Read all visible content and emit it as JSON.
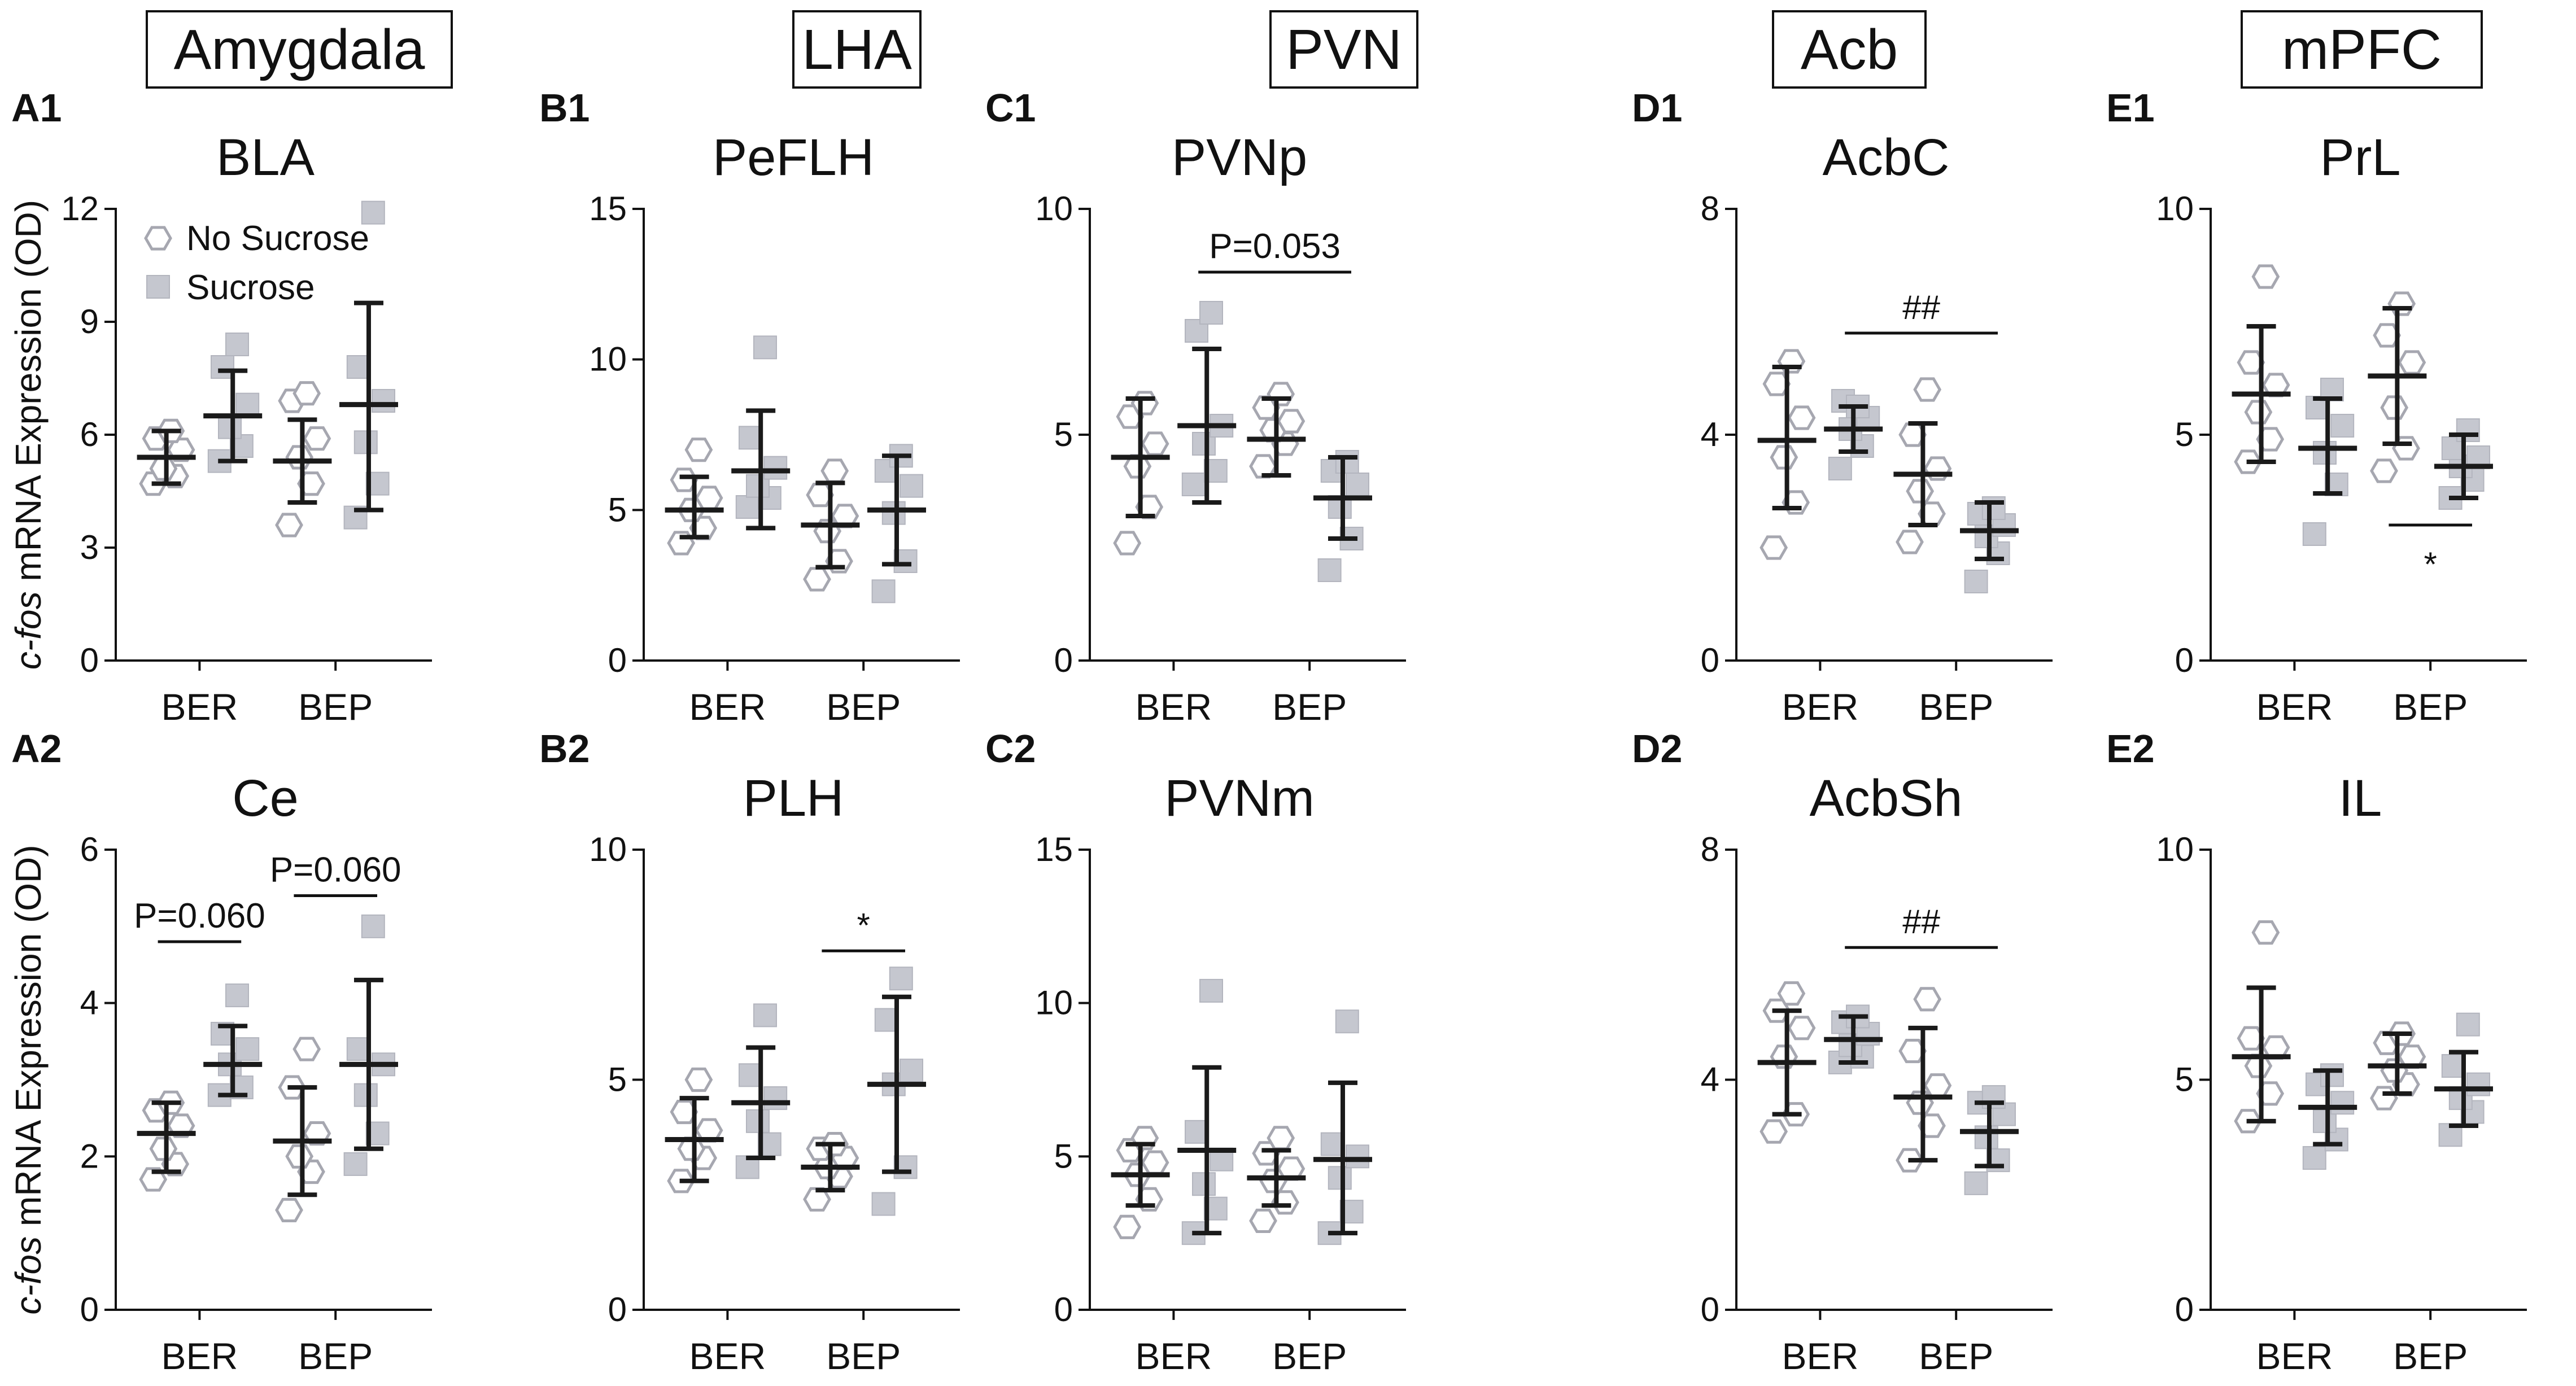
{
  "figure": {
    "ylabel_italic": "c-fos",
    "ylabel_rest": " mRNA Expression (OD)",
    "legend": {
      "no_sucrose": "No Sucrose",
      "sucrose": "Sucrose"
    },
    "region_boxes": [
      "Amygdala",
      "LHA",
      "PVN",
      "Acb",
      "mPFC"
    ]
  },
  "chart_data": [
    {
      "type": "scatter",
      "panel": "A1",
      "title": "BLA",
      "categories": [
        "BER",
        "BEP"
      ],
      "ylim": [
        0,
        12
      ],
      "yticks": [
        "0",
        "3",
        "6",
        "9",
        "12"
      ],
      "series": [
        {
          "name": "No Sucrose",
          "groups": [
            {
              "category": "BER",
              "points": [
                4.7,
                4.9,
                5.1,
                5.6,
                5.9,
                6.1
              ],
              "mean": 5.4,
              "sd_low": 4.7,
              "sd_high": 6.1
            },
            {
              "category": "BEP",
              "points": [
                3.6,
                4.7,
                5.4,
                5.9,
                6.9,
                7.1
              ],
              "mean": 5.3,
              "sd_low": 4.2,
              "sd_high": 6.4
            }
          ]
        },
        {
          "name": "Sucrose",
          "groups": [
            {
              "category": "BER",
              "points": [
                5.3,
                5.7,
                6.2,
                6.8,
                7.8,
                8.4
              ],
              "mean": 6.5,
              "sd_low": 5.3,
              "sd_high": 7.7
            },
            {
              "category": "BEP",
              "points": [
                3.8,
                4.7,
                5.8,
                6.9,
                7.8,
                11.9
              ],
              "mean": 6.8,
              "sd_low": 4.0,
              "sd_high": 9.5
            }
          ]
        }
      ],
      "annotations": []
    },
    {
      "type": "scatter",
      "panel": "B1",
      "title": "PeFLH",
      "categories": [
        "BER",
        "BEP"
      ],
      "ylim": [
        0,
        15
      ],
      "yticks": [
        "0",
        "5",
        "10",
        "15"
      ],
      "series": [
        {
          "name": "No Sucrose",
          "groups": [
            {
              "category": "BER",
              "points": [
                3.9,
                4.4,
                5.0,
                5.4,
                6.0,
                7.0
              ],
              "mean": 5.0,
              "sd_low": 4.1,
              "sd_high": 6.1
            },
            {
              "category": "BEP",
              "points": [
                2.7,
                3.3,
                4.3,
                4.8,
                5.5,
                6.3
              ],
              "mean": 4.5,
              "sd_low": 3.1,
              "sd_high": 5.9
            }
          ]
        },
        {
          "name": "Sucrose",
          "groups": [
            {
              "category": "BER",
              "points": [
                5.1,
                5.4,
                5.8,
                6.4,
                7.4,
                10.4
              ],
              "mean": 6.3,
              "sd_low": 4.4,
              "sd_high": 8.3
            },
            {
              "category": "BEP",
              "points": [
                2.3,
                3.3,
                4.9,
                5.8,
                6.3,
                6.8
              ],
              "mean": 5.0,
              "sd_low": 3.2,
              "sd_high": 6.8
            }
          ]
        }
      ],
      "annotations": []
    },
    {
      "type": "scatter",
      "panel": "C1",
      "title": "PVNp",
      "categories": [
        "BER",
        "BEP"
      ],
      "ylim": [
        0,
        10
      ],
      "yticks": [
        "0",
        "5",
        "10"
      ],
      "series": [
        {
          "name": "No Sucrose",
          "groups": [
            {
              "category": "BER",
              "points": [
                2.6,
                3.4,
                4.3,
                4.8,
                5.4,
                5.7
              ],
              "mean": 4.5,
              "sd_low": 3.2,
              "sd_high": 5.8
            },
            {
              "category": "BEP",
              "points": [
                4.3,
                4.8,
                5.1,
                5.3,
                5.6,
                5.9
              ],
              "mean": 4.9,
              "sd_low": 4.1,
              "sd_high": 5.8
            }
          ]
        },
        {
          "name": "Sucrose",
          "groups": [
            {
              "category": "BER",
              "points": [
                3.9,
                4.2,
                4.8,
                5.2,
                7.3,
                7.7
              ],
              "mean": 5.2,
              "sd_low": 3.5,
              "sd_high": 6.9
            },
            {
              "category": "BEP",
              "points": [
                2.0,
                2.7,
                3.4,
                3.9,
                4.2,
                4.4
              ],
              "mean": 3.6,
              "sd_low": 2.7,
              "sd_high": 4.5
            }
          ]
        }
      ],
      "annotations": [
        {
          "text": "P=0.053",
          "from": "BER-Sucrose",
          "to": "BEP-Sucrose",
          "y": 8.6
        }
      ]
    },
    {
      "type": "scatter",
      "panel": "D1",
      "title": "AcbC",
      "categories": [
        "BER",
        "BEP"
      ],
      "ylim": [
        0,
        8
      ],
      "yticks": [
        "0",
        "4",
        "8"
      ],
      "series": [
        {
          "name": "No Sucrose",
          "groups": [
            {
              "category": "BER",
              "points": [
                2.0,
                2.8,
                3.6,
                4.3,
                4.9,
                5.3
              ],
              "mean": 3.9,
              "sd_low": 2.7,
              "sd_high": 5.2
            },
            {
              "category": "BEP",
              "points": [
                2.1,
                2.6,
                3.0,
                3.4,
                4.0,
                4.8
              ],
              "mean": 3.3,
              "sd_low": 2.4,
              "sd_high": 4.2
            }
          ]
        },
        {
          "name": "Sucrose",
          "groups": [
            {
              "category": "BER",
              "points": [
                3.4,
                3.8,
                4.1,
                4.3,
                4.6,
                4.5
              ],
              "mean": 4.1,
              "sd_low": 3.7,
              "sd_high": 4.5
            },
            {
              "category": "BEP",
              "points": [
                1.4,
                1.9,
                2.2,
                2.4,
                2.6,
                2.7
              ],
              "mean": 2.3,
              "sd_low": 1.8,
              "sd_high": 2.8
            }
          ]
        }
      ],
      "annotations": [
        {
          "text": "##",
          "from": "BER-Sucrose",
          "to": "BEP-Sucrose",
          "y": 5.8
        }
      ]
    },
    {
      "type": "scatter",
      "panel": "E1",
      "title": "PrL",
      "categories": [
        "BER",
        "BEP"
      ],
      "ylim": [
        0,
        10
      ],
      "yticks": [
        "0",
        "5",
        "10"
      ],
      "series": [
        {
          "name": "No Sucrose",
          "groups": [
            {
              "category": "BER",
              "points": [
                4.4,
                4.9,
                5.5,
                6.1,
                6.6,
                8.5
              ],
              "mean": 5.9,
              "sd_low": 4.4,
              "sd_high": 7.4
            },
            {
              "category": "BEP",
              "points": [
                4.2,
                4.7,
                5.6,
                6.6,
                7.2,
                7.9
              ],
              "mean": 6.3,
              "sd_low": 4.8,
              "sd_high": 7.8
            }
          ]
        },
        {
          "name": "Sucrose",
          "groups": [
            {
              "category": "BER",
              "points": [
                2.8,
                3.9,
                4.6,
                5.2,
                5.6,
                6.0
              ],
              "mean": 4.7,
              "sd_low": 3.7,
              "sd_high": 5.8
            },
            {
              "category": "BEP",
              "points": [
                3.6,
                4.0,
                4.3,
                4.5,
                4.7,
                5.1
              ],
              "mean": 4.3,
              "sd_low": 3.6,
              "sd_high": 5.0
            }
          ]
        }
      ],
      "annotations": [
        {
          "text": "*",
          "from": "BEP-NoSucrose",
          "to": "BEP-Sucrose",
          "y": 3.0,
          "text_below": true
        }
      ]
    },
    {
      "type": "scatter",
      "panel": "A2",
      "title": "Ce",
      "categories": [
        "BER",
        "BEP"
      ],
      "ylim": [
        0,
        6
      ],
      "yticks": [
        "0",
        "2",
        "4",
        "6"
      ],
      "series": [
        {
          "name": "No Sucrose",
          "groups": [
            {
              "category": "BER",
              "points": [
                1.7,
                1.9,
                2.1,
                2.4,
                2.6,
                2.7
              ],
              "mean": 2.3,
              "sd_low": 1.8,
              "sd_high": 2.7
            },
            {
              "category": "BEP",
              "points": [
                1.3,
                1.8,
                2.0,
                2.3,
                2.9,
                3.4
              ],
              "mean": 2.2,
              "sd_low": 1.5,
              "sd_high": 2.9
            }
          ]
        },
        {
          "name": "Sucrose",
          "groups": [
            {
              "category": "BER",
              "points": [
                2.8,
                2.9,
                3.2,
                3.4,
                3.6,
                4.1
              ],
              "mean": 3.2,
              "sd_low": 2.8,
              "sd_high": 3.7
            },
            {
              "category": "BEP",
              "points": [
                1.9,
                2.3,
                2.8,
                3.2,
                3.4,
                5.0
              ],
              "mean": 3.2,
              "sd_low": 2.1,
              "sd_high": 4.3
            }
          ]
        }
      ],
      "annotations": [
        {
          "text": "P=0.060",
          "from": "BER-NoSucrose",
          "to": "BER-Sucrose",
          "y": 4.8
        },
        {
          "text": "P=0.060",
          "from": "BEP-NoSucrose",
          "to": "BEP-Sucrose",
          "y": 5.4
        }
      ]
    },
    {
      "type": "scatter",
      "panel": "B2",
      "title": "PLH",
      "categories": [
        "BER",
        "BEP"
      ],
      "ylim": [
        0,
        10
      ],
      "yticks": [
        "0",
        "5",
        "10"
      ],
      "series": [
        {
          "name": "No Sucrose",
          "groups": [
            {
              "category": "BER",
              "points": [
                2.8,
                3.3,
                3.5,
                3.9,
                4.3,
                5.0
              ],
              "mean": 3.7,
              "sd_low": 2.8,
              "sd_high": 4.6
            },
            {
              "category": "BEP",
              "points": [
                2.4,
                2.9,
                3.1,
                3.3,
                3.5,
                3.6
              ],
              "mean": 3.1,
              "sd_low": 2.6,
              "sd_high": 3.6
            }
          ]
        },
        {
          "name": "Sucrose",
          "groups": [
            {
              "category": "BER",
              "points": [
                3.1,
                3.6,
                4.1,
                4.6,
                5.1,
                6.4
              ],
              "mean": 4.5,
              "sd_low": 3.3,
              "sd_high": 5.7
            },
            {
              "category": "BEP",
              "points": [
                2.3,
                3.1,
                4.9,
                5.2,
                6.3,
                7.2
              ],
              "mean": 4.9,
              "sd_low": 3.0,
              "sd_high": 6.8
            }
          ]
        }
      ],
      "annotations": [
        {
          "text": "*",
          "from": "BEP-NoSucrose",
          "to": "BEP-Sucrose",
          "y": 7.8
        }
      ]
    },
    {
      "type": "scatter",
      "panel": "C2",
      "title": "PVNm",
      "categories": [
        "BER",
        "BEP"
      ],
      "ylim": [
        0,
        15
      ],
      "yticks": [
        "0",
        "5",
        "10",
        "15"
      ],
      "series": [
        {
          "name": "No Sucrose",
          "groups": [
            {
              "category": "BER",
              "points": [
                2.7,
                3.6,
                4.4,
                4.8,
                5.2,
                5.6
              ],
              "mean": 4.4,
              "sd_low": 3.4,
              "sd_high": 5.4
            },
            {
              "category": "BEP",
              "points": [
                2.9,
                3.5,
                4.2,
                4.6,
                5.1,
                5.6
              ],
              "mean": 4.3,
              "sd_low": 3.4,
              "sd_high": 5.2
            }
          ]
        },
        {
          "name": "Sucrose",
          "groups": [
            {
              "category": "BER",
              "points": [
                2.5,
                3.3,
                4.1,
                4.9,
                5.8,
                10.4
              ],
              "mean": 5.2,
              "sd_low": 2.5,
              "sd_high": 7.9
            },
            {
              "category": "BEP",
              "points": [
                2.5,
                3.2,
                4.3,
                5.0,
                5.4,
                9.4
              ],
              "mean": 4.9,
              "sd_low": 2.5,
              "sd_high": 7.4
            }
          ]
        }
      ],
      "annotations": []
    },
    {
      "type": "scatter",
      "panel": "D2",
      "title": "AcbSh",
      "categories": [
        "BER",
        "BEP"
      ],
      "ylim": [
        0,
        8
      ],
      "yticks": [
        "0",
        "4",
        "8"
      ],
      "series": [
        {
          "name": "No Sucrose",
          "groups": [
            {
              "category": "BER",
              "points": [
                3.1,
                3.4,
                4.4,
                4.9,
                5.2,
                5.5
              ],
              "mean": 4.3,
              "sd_low": 3.4,
              "sd_high": 5.2
            },
            {
              "category": "BEP",
              "points": [
                2.6,
                3.2,
                3.6,
                3.9,
                4.5,
                5.4
              ],
              "mean": 3.7,
              "sd_low": 2.6,
              "sd_high": 4.9
            }
          ]
        },
        {
          "name": "Sucrose",
          "groups": [
            {
              "category": "BER",
              "points": [
                4.3,
                4.4,
                4.6,
                4.8,
                5.0,
                5.1
              ],
              "mean": 4.7,
              "sd_low": 4.3,
              "sd_high": 5.1
            },
            {
              "category": "BEP",
              "points": [
                2.2,
                2.6,
                3.0,
                3.4,
                3.6,
                3.7
              ],
              "mean": 3.1,
              "sd_low": 2.5,
              "sd_high": 3.6
            }
          ]
        }
      ],
      "annotations": [
        {
          "text": "##",
          "from": "BER-Sucrose",
          "to": "BEP-Sucrose",
          "y": 6.3
        }
      ]
    },
    {
      "type": "scatter",
      "panel": "E2",
      "title": "IL",
      "categories": [
        "BER",
        "BEP"
      ],
      "ylim": [
        0,
        10
      ],
      "yticks": [
        "0",
        "5",
        "10"
      ],
      "series": [
        {
          "name": "No Sucrose",
          "groups": [
            {
              "category": "BER",
              "points": [
                4.1,
                4.7,
                5.3,
                5.7,
                5.9,
                8.2
              ],
              "mean": 5.5,
              "sd_low": 4.1,
              "sd_high": 7.0
            },
            {
              "category": "BEP",
              "points": [
                4.6,
                4.9,
                5.2,
                5.5,
                5.8,
                6.0
              ],
              "mean": 5.3,
              "sd_low": 4.7,
              "sd_high": 6.0
            }
          ]
        },
        {
          "name": "Sucrose",
          "groups": [
            {
              "category": "BER",
              "points": [
                3.3,
                3.7,
                4.1,
                4.5,
                4.9,
                5.1
              ],
              "mean": 4.4,
              "sd_low": 3.6,
              "sd_high": 5.2
            },
            {
              "category": "BEP",
              "points": [
                3.8,
                4.3,
                4.6,
                4.9,
                5.3,
                6.2
              ],
              "mean": 4.8,
              "sd_low": 4.0,
              "sd_high": 5.6
            }
          ]
        }
      ],
      "annotations": []
    }
  ]
}
